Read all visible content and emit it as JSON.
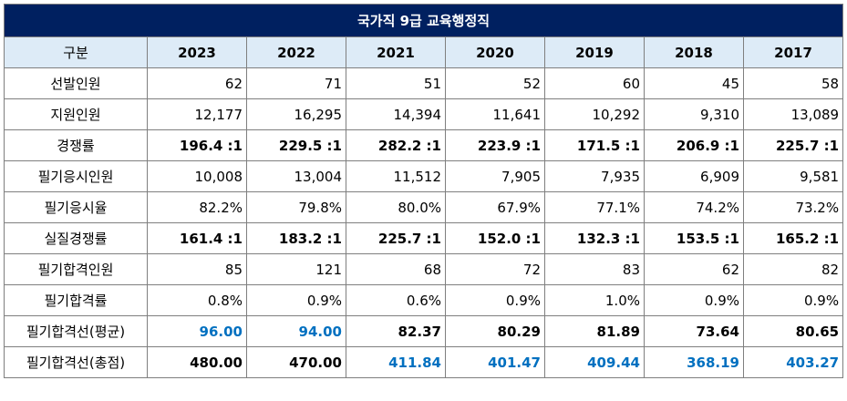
{
  "title": "국가직 9급 교육행정직",
  "header": {
    "label": "구분",
    "years": [
      "2023",
      "2022",
      "2021",
      "2020",
      "2019",
      "2018",
      "2017"
    ]
  },
  "rows": [
    {
      "label": "선발인원",
      "values": [
        "62",
        "71",
        "51",
        "52",
        "60",
        "45",
        "58"
      ]
    },
    {
      "label": "지원인원",
      "values": [
        "12,177",
        "16,295",
        "14,394",
        "11,641",
        "10,292",
        "9,310",
        "13,089"
      ]
    },
    {
      "label": "경쟁률",
      "values": [
        "196.4 :1",
        "229.5 :1",
        "282.2 :1",
        "223.9 :1",
        "171.5 :1",
        "206.9 :1",
        "225.7 :1"
      ]
    },
    {
      "label": "필기응시인원",
      "values": [
        "10,008",
        "13,004",
        "11,512",
        "7,905",
        "7,935",
        "6,909",
        "9,581"
      ]
    },
    {
      "label": "필기응시율",
      "values": [
        "82.2%",
        "79.8%",
        "80.0%",
        "67.9%",
        "77.1%",
        "74.2%",
        "73.2%"
      ]
    },
    {
      "label": "실질경쟁률",
      "values": [
        "161.4 :1",
        "183.2 :1",
        "225.7 :1",
        "152.0 :1",
        "132.3 :1",
        "153.5 :1",
        "165.2 :1"
      ]
    },
    {
      "label": "필기합격인원",
      "values": [
        "85",
        "121",
        "68",
        "72",
        "83",
        "62",
        "82"
      ]
    },
    {
      "label": "필기합격률",
      "values": [
        "0.8%",
        "0.9%",
        "0.6%",
        "0.9%",
        "1.0%",
        "0.9%",
        "0.9%"
      ]
    },
    {
      "label": "필기합격선(평균)",
      "values": [
        "96.00",
        "94.00",
        "82.37",
        "80.29",
        "81.89",
        "73.64",
        "80.65"
      ]
    },
    {
      "label": "필기합격선(총점)",
      "values": [
        "480.00",
        "470.00",
        "411.84",
        "401.47",
        "409.44",
        "368.19",
        "403.27"
      ]
    }
  ],
  "colors": {
    "title_bg": "#002060",
    "header_bg": "#ddebf7",
    "highlight_blue": "#0070c0",
    "border": "#7f7f7f"
  }
}
